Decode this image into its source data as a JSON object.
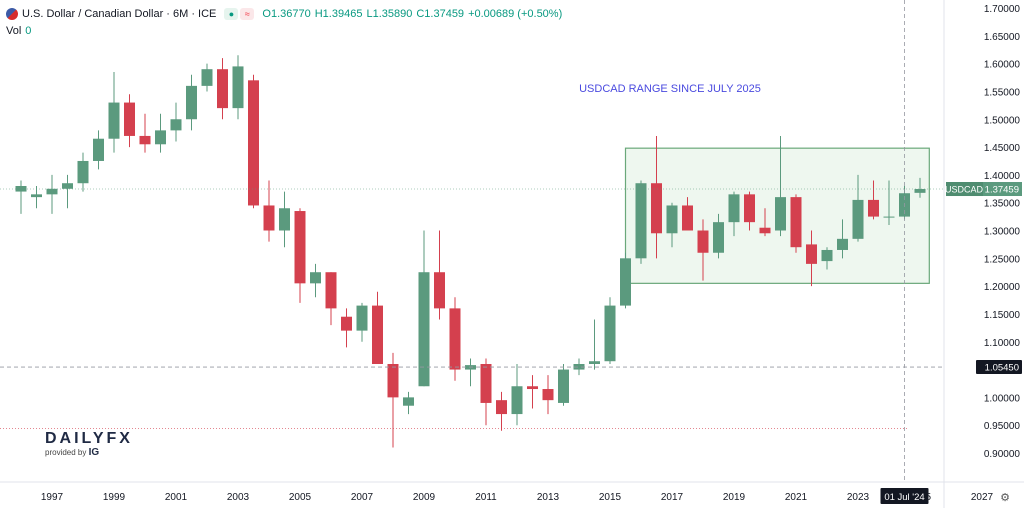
{
  "header": {
    "title": "U.S. Dollar / Canadian Dollar · 6M · ICE",
    "open": "O1.36770",
    "high": "H1.39465",
    "low": "L1.35890",
    "close": "C1.37459",
    "change": "+0.00689 (+0.50%)",
    "volume_label": "Vol",
    "volume_value": "0"
  },
  "branding": {
    "logo": "DAILYFX",
    "provided_by": "provided by",
    "provider": "IG"
  },
  "colors": {
    "up": "#5b9a7e",
    "down": "#d4404e",
    "box_fill": "#eef7ef",
    "box_stroke": "#6aa87a",
    "annotation": "#4a4adf"
  },
  "icons": [
    "us-flag-icon",
    "market-status-icon",
    "settings-gear-icon"
  ],
  "chart_data": {
    "type": "candlestick",
    "symbol": "USDCAD",
    "timeframe": "6M",
    "ylim": [
      0.9,
      1.7
    ],
    "xlim": [
      1996.0,
      2027.6
    ],
    "y_ticks": [
      "1.70000",
      "1.65000",
      "1.60000",
      "1.55000",
      "1.50000",
      "1.45000",
      "1.40000",
      "1.35000",
      "1.30000",
      "1.25000",
      "1.20000",
      "1.15000",
      "1.10000",
      "1.05000",
      "1.00000",
      "0.95000",
      "0.90000"
    ],
    "x_ticks": [
      "1997",
      "1999",
      "2001",
      "2003",
      "2005",
      "2007",
      "2009",
      "2011",
      "2013",
      "2015",
      "2017",
      "2019",
      "2021",
      "2023",
      "2025",
      "2027"
    ],
    "current_price_label": "1.37459",
    "current_price": 1.37459,
    "price_tag_symbol": "USDCAD",
    "crosshair_price_label": "1.05450",
    "crosshair_price": 1.0545,
    "crosshair_date_label": "01 Jul '24",
    "crosshair_date": 2024.5,
    "support_line": 0.944,
    "annotation": "USDCAD RANGE SINCE JULY 2025",
    "range_box": {
      "x0": 2015.5,
      "x1": 2025.3,
      "y0": 1.205,
      "y1": 1.448
    },
    "candles": [
      {
        "t": 1996.0,
        "o": 1.37,
        "h": 1.39,
        "l": 1.33,
        "c": 1.38
      },
      {
        "t": 1996.5,
        "o": 1.36,
        "h": 1.38,
        "l": 1.34,
        "c": 1.365
      },
      {
        "t": 1997.0,
        "o": 1.365,
        "h": 1.4,
        "l": 1.33,
        "c": 1.375
      },
      {
        "t": 1997.5,
        "o": 1.375,
        "h": 1.4,
        "l": 1.34,
        "c": 1.385
      },
      {
        "t": 1998.0,
        "o": 1.385,
        "h": 1.44,
        "l": 1.37,
        "c": 1.425
      },
      {
        "t": 1998.5,
        "o": 1.425,
        "h": 1.48,
        "l": 1.41,
        "c": 1.465
      },
      {
        "t": 1999.0,
        "o": 1.465,
        "h": 1.585,
        "l": 1.44,
        "c": 1.53
      },
      {
        "t": 1999.5,
        "o": 1.53,
        "h": 1.545,
        "l": 1.45,
        "c": 1.47
      },
      {
        "t": 2000.0,
        "o": 1.47,
        "h": 1.51,
        "l": 1.44,
        "c": 1.455
      },
      {
        "t": 2000.5,
        "o": 1.455,
        "h": 1.51,
        "l": 1.44,
        "c": 1.48
      },
      {
        "t": 2001.0,
        "o": 1.48,
        "h": 1.53,
        "l": 1.46,
        "c": 1.5
      },
      {
        "t": 2001.5,
        "o": 1.5,
        "h": 1.58,
        "l": 1.48,
        "c": 1.56
      },
      {
        "t": 2002.0,
        "o": 1.56,
        "h": 1.6,
        "l": 1.55,
        "c": 1.59
      },
      {
        "t": 2002.5,
        "o": 1.59,
        "h": 1.61,
        "l": 1.5,
        "c": 1.52
      },
      {
        "t": 2003.0,
        "o": 1.52,
        "h": 1.615,
        "l": 1.5,
        "c": 1.595
      },
      {
        "t": 2003.5,
        "o": 1.57,
        "h": 1.58,
        "l": 1.34,
        "c": 1.345
      },
      {
        "t": 2004.0,
        "o": 1.345,
        "h": 1.39,
        "l": 1.28,
        "c": 1.3
      },
      {
        "t": 2004.5,
        "o": 1.3,
        "h": 1.37,
        "l": 1.27,
        "c": 1.34
      },
      {
        "t": 2005.0,
        "o": 1.335,
        "h": 1.34,
        "l": 1.17,
        "c": 1.205
      },
      {
        "t": 2005.5,
        "o": 1.205,
        "h": 1.24,
        "l": 1.18,
        "c": 1.225
      },
      {
        "t": 2006.0,
        "o": 1.225,
        "h": 1.225,
        "l": 1.13,
        "c": 1.16
      },
      {
        "t": 2006.5,
        "o": 1.145,
        "h": 1.16,
        "l": 1.09,
        "c": 1.12
      },
      {
        "t": 2007.0,
        "o": 1.12,
        "h": 1.17,
        "l": 1.1,
        "c": 1.165
      },
      {
        "t": 2007.5,
        "o": 1.165,
        "h": 1.19,
        "l": 1.06,
        "c": 1.06
      },
      {
        "t": 2008.0,
        "o": 1.06,
        "h": 1.08,
        "l": 0.91,
        "c": 1.0
      },
      {
        "t": 2008.5,
        "o": 0.985,
        "h": 1.01,
        "l": 0.97,
        "c": 1.0
      },
      {
        "t": 2009.0,
        "o": 1.02,
        "h": 1.3,
        "l": 1.02,
        "c": 1.225
      },
      {
        "t": 2009.5,
        "o": 1.225,
        "h": 1.3,
        "l": 1.14,
        "c": 1.16
      },
      {
        "t": 2010.0,
        "o": 1.16,
        "h": 1.18,
        "l": 1.03,
        "c": 1.05
      },
      {
        "t": 2010.5,
        "o": 1.05,
        "h": 1.07,
        "l": 1.02,
        "c": 1.058
      },
      {
        "t": 2011.0,
        "o": 1.06,
        "h": 1.07,
        "l": 0.95,
        "c": 0.99
      },
      {
        "t": 2011.5,
        "o": 0.995,
        "h": 1.01,
        "l": 0.94,
        "c": 0.97
      },
      {
        "t": 2012.0,
        "o": 0.97,
        "h": 1.06,
        "l": 0.95,
        "c": 1.02
      },
      {
        "t": 2012.5,
        "o": 1.02,
        "h": 1.04,
        "l": 0.98,
        "c": 1.015
      },
      {
        "t": 2013.0,
        "o": 1.015,
        "h": 1.04,
        "l": 0.97,
        "c": 0.995
      },
      {
        "t": 2013.5,
        "o": 0.99,
        "h": 1.06,
        "l": 0.985,
        "c": 1.05
      },
      {
        "t": 2014.0,
        "o": 1.05,
        "h": 1.07,
        "l": 1.04,
        "c": 1.06
      },
      {
        "t": 2014.5,
        "o": 1.06,
        "h": 1.14,
        "l": 1.05,
        "c": 1.065
      },
      {
        "t": 2015.0,
        "o": 1.065,
        "h": 1.18,
        "l": 1.06,
        "c": 1.165
      },
      {
        "t": 2015.5,
        "o": 1.165,
        "h": 1.26,
        "l": 1.16,
        "c": 1.25
      },
      {
        "t": 2016.0,
        "o": 1.25,
        "h": 1.39,
        "l": 1.24,
        "c": 1.385
      },
      {
        "t": 2016.5,
        "o": 1.385,
        "h": 1.47,
        "l": 1.25,
        "c": 1.295
      },
      {
        "t": 2017.0,
        "o": 1.295,
        "h": 1.35,
        "l": 1.27,
        "c": 1.345
      },
      {
        "t": 2017.5,
        "o": 1.345,
        "h": 1.36,
        "l": 1.3,
        "c": 1.3
      },
      {
        "t": 2018.0,
        "o": 1.3,
        "h": 1.32,
        "l": 1.21,
        "c": 1.26
      },
      {
        "t": 2018.5,
        "o": 1.26,
        "h": 1.33,
        "l": 1.25,
        "c": 1.315
      },
      {
        "t": 2019.0,
        "o": 1.315,
        "h": 1.37,
        "l": 1.29,
        "c": 1.365
      },
      {
        "t": 2019.5,
        "o": 1.365,
        "h": 1.37,
        "l": 1.3,
        "c": 1.315
      },
      {
        "t": 2020.0,
        "o": 1.305,
        "h": 1.34,
        "l": 1.29,
        "c": 1.295
      },
      {
        "t": 2020.5,
        "o": 1.3,
        "h": 1.47,
        "l": 1.29,
        "c": 1.36
      },
      {
        "t": 2021.0,
        "o": 1.36,
        "h": 1.365,
        "l": 1.26,
        "c": 1.27
      },
      {
        "t": 2021.5,
        "o": 1.275,
        "h": 1.3,
        "l": 1.2,
        "c": 1.24
      },
      {
        "t": 2022.0,
        "o": 1.245,
        "h": 1.27,
        "l": 1.23,
        "c": 1.265
      },
      {
        "t": 2022.5,
        "o": 1.265,
        "h": 1.32,
        "l": 1.25,
        "c": 1.285
      },
      {
        "t": 2023.0,
        "o": 1.285,
        "h": 1.4,
        "l": 1.28,
        "c": 1.355
      },
      {
        "t": 2023.5,
        "o": 1.355,
        "h": 1.39,
        "l": 1.32,
        "c": 1.325
      },
      {
        "t": 2024.0,
        "o": 1.325,
        "h": 1.39,
        "l": 1.31,
        "c": 1.325
      },
      {
        "t": 2024.5,
        "o": 1.325,
        "h": 1.38,
        "l": 1.32,
        "c": 1.367
      },
      {
        "t": 2025.0,
        "o": 1.3677,
        "h": 1.39465,
        "l": 1.3589,
        "c": 1.37459
      }
    ]
  }
}
